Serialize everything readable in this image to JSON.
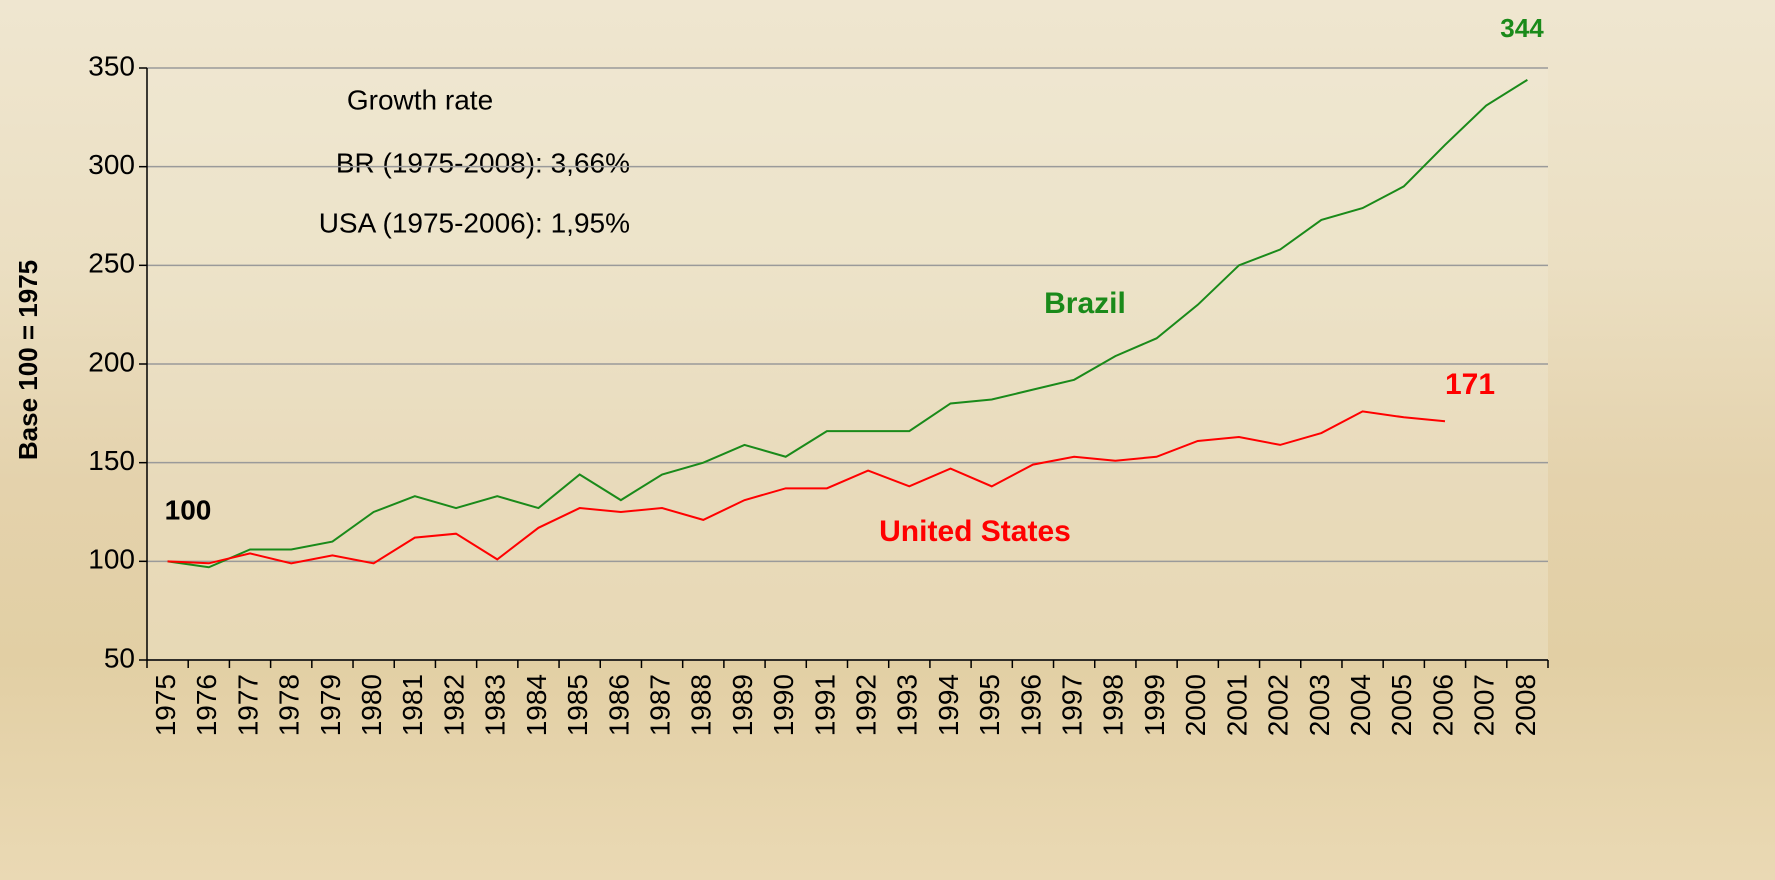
{
  "chart_data": {
    "type": "line",
    "y_label": "Base 100 = 1975",
    "categories": [
      "1975",
      "1976",
      "1977",
      "1978",
      "1979",
      "1980",
      "1981",
      "1982",
      "1983",
      "1984",
      "1985",
      "1986",
      "1987",
      "1988",
      "1989",
      "1990",
      "1991",
      "1992",
      "1993",
      "1994",
      "1995",
      "1996",
      "1997",
      "1998",
      "1999",
      "2000",
      "2001",
      "2002",
      "2003",
      "2004",
      "2005",
      "2006",
      "2007",
      "2008"
    ],
    "series": [
      {
        "name": "Brazil",
        "color": "#1a8a1a",
        "values": [
          100,
          97,
          106,
          106,
          110,
          125,
          133,
          127,
          133,
          127,
          144,
          131,
          144,
          150,
          159,
          153,
          166,
          166,
          166,
          180,
          182,
          187,
          192,
          204,
          213,
          230,
          250,
          258,
          273,
          279,
          290,
          311,
          331,
          344
        ]
      },
      {
        "name": "United States",
        "color": "#ff0000",
        "values": [
          100,
          99,
          104,
          99,
          103,
          99,
          112,
          114,
          101,
          117,
          127,
          125,
          127,
          121,
          131,
          137,
          137,
          146,
          138,
          147,
          138,
          149,
          153,
          151,
          153,
          161,
          163,
          159,
          165,
          176,
          173,
          171,
          null,
          null
        ]
      }
    ],
    "annotations": [
      "Growth rate",
      "BR (1975-2008): 3,66%",
      "USA (1975-2006): 1,95%"
    ],
    "ylim": [
      50,
      350
    ],
    "yticks": [
      50,
      100,
      150,
      200,
      250,
      300,
      350
    ],
    "grid": true
  }
}
